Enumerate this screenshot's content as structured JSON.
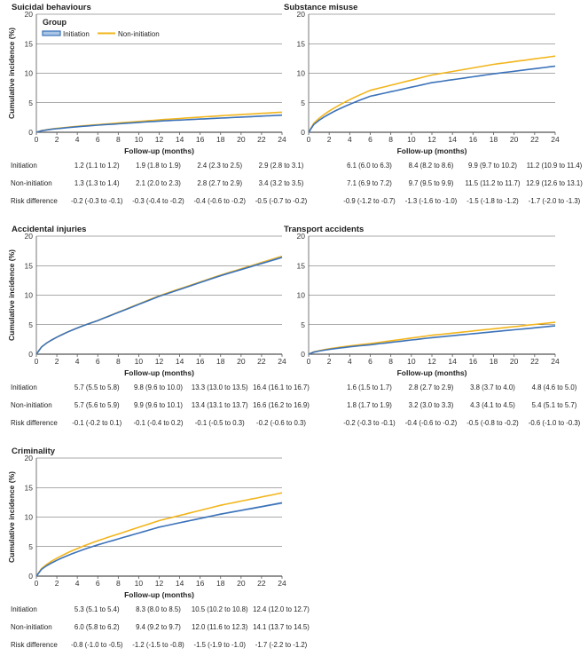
{
  "colors": {
    "initiation": "#3b72b9",
    "non_initiation": "#f2b51b",
    "band_initiation": "#a9c5e6",
    "grid": "#555555"
  },
  "common": {
    "ylabel": "Cumulative incidence (%)",
    "xlabel": "Follow-up (months)",
    "x_ticks": [
      "0",
      "2",
      "4",
      "6",
      "8",
      "10",
      "12",
      "14",
      "16",
      "18",
      "20",
      "22",
      "24"
    ],
    "y_ticks": [
      "0",
      "5",
      "10",
      "15",
      "20"
    ],
    "row_labels": [
      "Initiation",
      "Non-initiation",
      "Risk difference"
    ]
  },
  "legend": {
    "title": "Group",
    "items": [
      "Initiation",
      "Non-initiation"
    ]
  },
  "chart_data": [
    {
      "type": "line",
      "title": "Suicidal behaviours",
      "xlim": [
        0,
        24
      ],
      "ylim": [
        0,
        20
      ],
      "series": [
        {
          "name": "Initiation",
          "x": [
            0,
            6,
            12,
            18,
            24
          ],
          "y": [
            0,
            1.2,
            1.9,
            2.4,
            2.9
          ]
        },
        {
          "name": "Non-initiation",
          "x": [
            0,
            6,
            12,
            18,
            24
          ],
          "y": [
            0,
            1.3,
            2.1,
            2.8,
            3.4
          ]
        }
      ],
      "table": {
        "Initiation": [
          "1.2 (1.1 to 1.2)",
          "1.9 (1.8 to 1.9)",
          "2.4 (2.3 to 2.5)",
          "2.9 (2.8 to 3.1)"
        ],
        "Non-initiation": [
          "1.3 (1.3 to 1.4)",
          "2.1 (2.0 to 2.3)",
          "2.8 (2.7 to 2.9)",
          "3.4 (3.2 to 3.5)"
        ],
        "Risk difference": [
          "-0.2 (-0.3 to -0.1)",
          "-0.3 (-0.4 to -0.2)",
          "-0.4 (-0.6 to -0.2)",
          "-0.5 (-0.7 to -0.2)"
        ]
      }
    },
    {
      "type": "line",
      "title": "Substance misuse",
      "xlim": [
        0,
        24
      ],
      "ylim": [
        0,
        20
      ],
      "series": [
        {
          "name": "Initiation",
          "x": [
            0,
            6,
            12,
            18,
            24
          ],
          "y": [
            0,
            6.1,
            8.4,
            9.9,
            11.2
          ]
        },
        {
          "name": "Non-initiation",
          "x": [
            0,
            6,
            12,
            18,
            24
          ],
          "y": [
            0,
            7.1,
            9.7,
            11.5,
            12.9
          ]
        }
      ],
      "table": {
        "Initiation": [
          "6.1 (6.0 to 6.3)",
          "8.4 (8.2 to 8.6)",
          "9.9 (9.7 to 10.2)",
          "11.2 (10.9 to 11.4)"
        ],
        "Non-initiation": [
          "7.1 (6.9 to 7.2)",
          "9.7 (9.5 to 9.9)",
          "11.5 (11.2 to 11.7)",
          "12.9 (12.6 to 13.1)"
        ],
        "Risk difference": [
          "-0.9 (-1.2 to -0.7)",
          "-1.3 (-1.6 to -1.0)",
          "-1.5 (-1.8 to -1.2)",
          "-1.7 (-2.0 to -1.3)"
        ]
      }
    },
    {
      "type": "line",
      "title": "Accidental injuries",
      "xlim": [
        0,
        24
      ],
      "ylim": [
        0,
        20
      ],
      "series": [
        {
          "name": "Initiation",
          "x": [
            0,
            6,
            12,
            18,
            24
          ],
          "y": [
            0,
            5.7,
            9.8,
            13.3,
            16.4
          ]
        },
        {
          "name": "Non-initiation",
          "x": [
            0,
            6,
            12,
            18,
            24
          ],
          "y": [
            0,
            5.7,
            9.9,
            13.4,
            16.6
          ]
        }
      ],
      "table": {
        "Initiation": [
          "5.7 (5.5 to 5.8)",
          "9.8 (9.6 to 10.0)",
          "13.3 (13.0 to 13.5)",
          "16.4 (16.1 to 16.7)"
        ],
        "Non-initiation": [
          "5.7 (5.6 to 5.9)",
          "9.9 (9.6 to 10.1)",
          "13.4 (13.1 to 13.7)",
          "16.6 (16.2 to 16.9)"
        ],
        "Risk difference": [
          "-0.1 (-0.2 to 0.1)",
          "-0.1 (-0.4 to 0.2)",
          "-0.1 (-0.5 to 0.3)",
          "-0.2 (-0.6 to 0.3)"
        ]
      }
    },
    {
      "type": "line",
      "title": "Transport accidents",
      "xlim": [
        0,
        24
      ],
      "ylim": [
        0,
        20
      ],
      "series": [
        {
          "name": "Initiation",
          "x": [
            0,
            6,
            12,
            18,
            24
          ],
          "y": [
            0,
            1.6,
            2.8,
            3.8,
            4.8
          ]
        },
        {
          "name": "Non-initiation",
          "x": [
            0,
            6,
            12,
            18,
            24
          ],
          "y": [
            0,
            1.8,
            3.2,
            4.3,
            5.4
          ]
        }
      ],
      "table": {
        "Initiation": [
          "1.6 (1.5 to 1.7)",
          "2.8 (2.7 to 2.9)",
          "3.8 (3.7 to 4.0)",
          "4.8 (4.6 to 5.0)"
        ],
        "Non-initiation": [
          "1.8 (1.7 to 1.9)",
          "3.2 (3.0 to 3.3)",
          "4.3 (4.1 to 4.5)",
          "5.4 (5.1 to 5.7)"
        ],
        "Risk difference": [
          "-0.2 (-0.3 to -0.1)",
          "-0.4 (-0.6 to -0.2)",
          "-0.5 (-0.8 to -0.2)",
          "-0.6 (-1.0 to -0.3)"
        ]
      }
    },
    {
      "type": "line",
      "title": "Criminality",
      "xlim": [
        0,
        24
      ],
      "ylim": [
        0,
        20
      ],
      "series": [
        {
          "name": "Initiation",
          "x": [
            0,
            6,
            12,
            18,
            24
          ],
          "y": [
            0,
            5.3,
            8.3,
            10.5,
            12.4
          ]
        },
        {
          "name": "Non-initiation",
          "x": [
            0,
            6,
            12,
            18,
            24
          ],
          "y": [
            0,
            6.0,
            9.4,
            12.0,
            14.1
          ]
        }
      ],
      "table": {
        "Initiation": [
          "5.3 (5.1 to 5.4)",
          "8.3 (8.0 to 8.5)",
          "10.5 (10.2 to 10.8)",
          "12.4 (12.0 to 12.7)"
        ],
        "Non-initiation": [
          "6.0 (5.8 to 6.2)",
          "9.4 (9.2 to 9.7)",
          "12.0 (11.6 to 12.3)",
          "14.1 (13.7 to 14.5)"
        ],
        "Risk difference": [
          "-0.8 (-1.0 to -0.5)",
          "-1.2 (-1.5 to -0.8)",
          "-1.5 (-1.9 to -1.0)",
          "-1.7 (-2.2 to -1.2)"
        ]
      }
    }
  ]
}
